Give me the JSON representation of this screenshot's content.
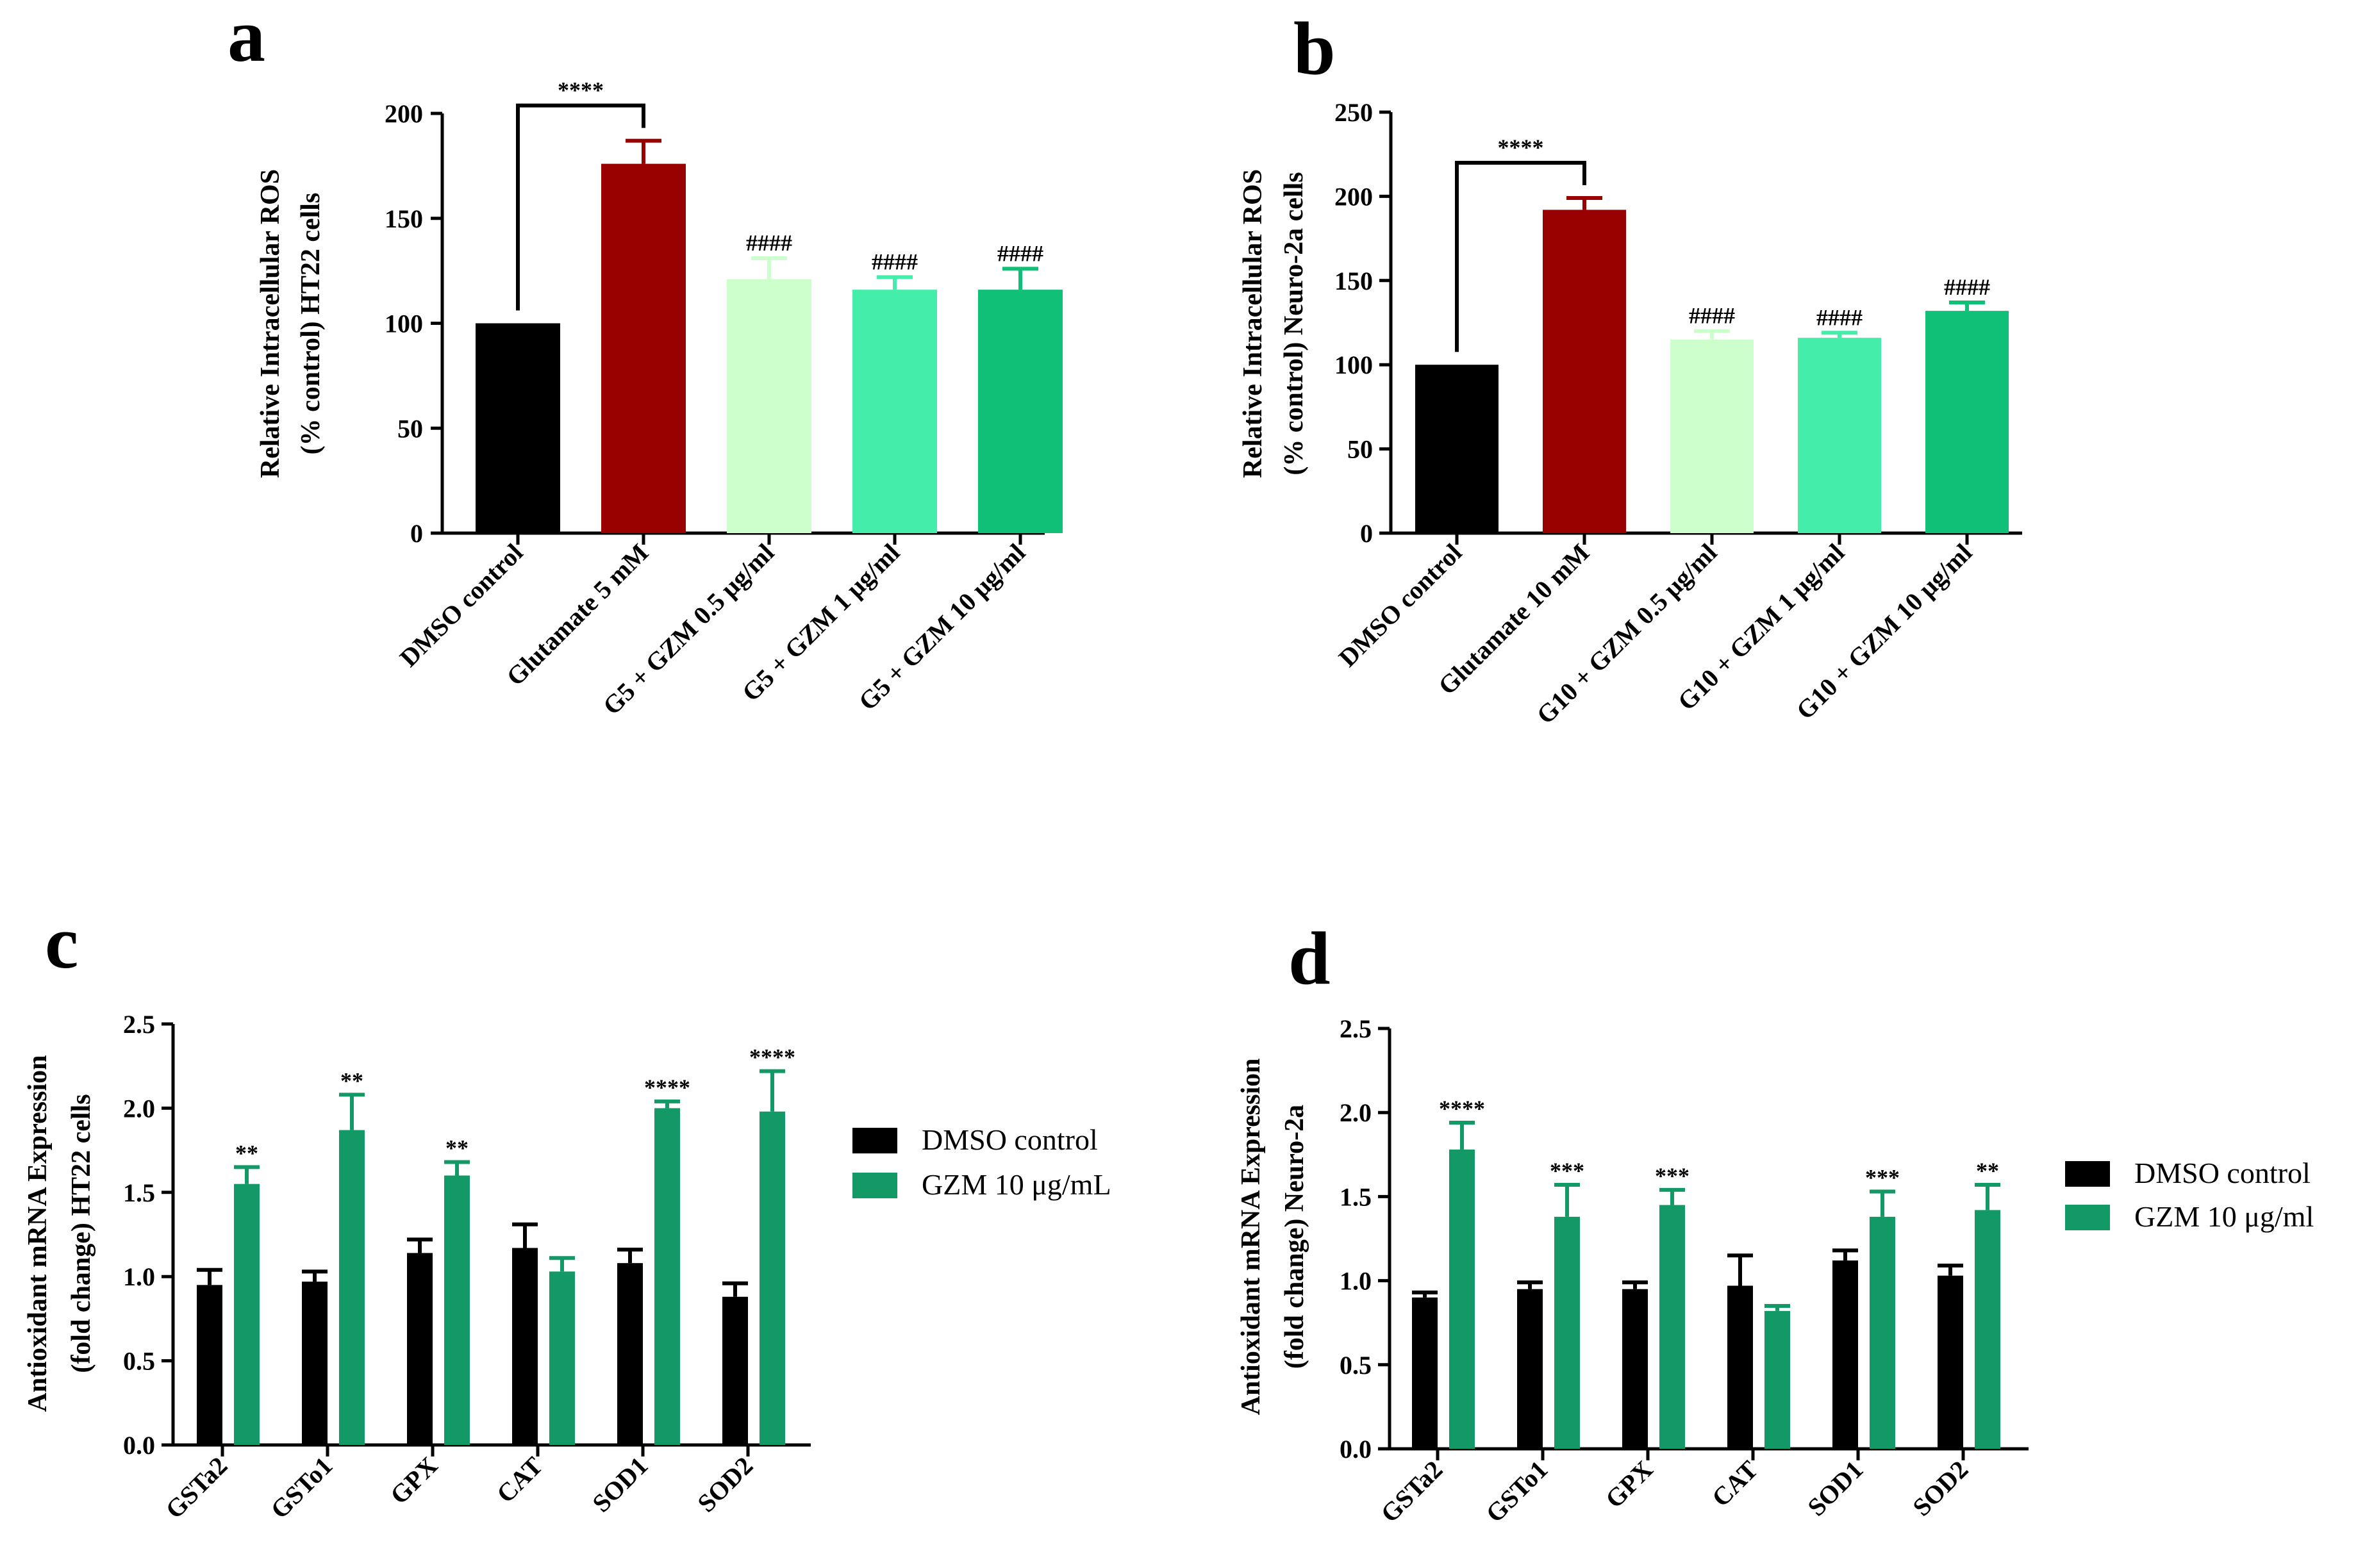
{
  "colors": {
    "black": "#000000",
    "darkred": "#990000",
    "palegreen": "#ccffcc",
    "aquamarine": "#44eeaa",
    "green": "#11c077",
    "seagreen": "#129966"
  },
  "chart_data": [
    {
      "panel": "a",
      "type": "bar",
      "ylabel": [
        "Relative Intracellular ROS",
        "(% control) HT22 cells"
      ],
      "ylim": [
        0,
        200
      ],
      "yticks": [
        0,
        50,
        100,
        150,
        200
      ],
      "categories": [
        "DMSO control",
        "Glutamate 5 mM",
        "G5 + GZM 0.5 μg/ml",
        "G5 + GZM 1 μg/ml",
        "G5 + GZM 10 μg/ml"
      ],
      "values": [
        100,
        176,
        121,
        116,
        116
      ],
      "errors": [
        0,
        11,
        10,
        6,
        10
      ],
      "bar_colors": [
        "#000000",
        "#990000",
        "#ccffcc",
        "#44eeaa",
        "#11c077"
      ],
      "annotations": [
        "",
        "",
        "####",
        "####",
        "####"
      ],
      "bracket": {
        "from": 0,
        "to": 1,
        "label": "****"
      }
    },
    {
      "panel": "b",
      "type": "bar",
      "ylabel": [
        "Relative Intracellular ROS",
        "(% control) Neuro-2a cells"
      ],
      "ylim": [
        0,
        250
      ],
      "yticks": [
        0,
        50,
        100,
        150,
        200,
        250
      ],
      "categories": [
        "DMSO control",
        "Glutamate 10 mM",
        "G10 + GZM 0.5 μg/ml",
        "G10 + GZM 1 μg/ml",
        "G10 + GZM 10 μg/ml"
      ],
      "values": [
        100,
        192,
        115,
        116,
        132
      ],
      "errors": [
        0,
        7,
        5,
        3,
        5
      ],
      "bar_colors": [
        "#000000",
        "#990000",
        "#ccffcc",
        "#44eeaa",
        "#11c077"
      ],
      "annotations": [
        "",
        "",
        "####",
        "####",
        "####"
      ],
      "bracket": {
        "from": 0,
        "to": 1,
        "label": "****"
      }
    },
    {
      "panel": "c",
      "type": "bar",
      "ylabel": [
        "Antioxidant mRNA Expression",
        "(fold change) HT22 cells"
      ],
      "ylim": [
        0,
        2.5
      ],
      "yticks": [
        "0.0",
        "0.5",
        "1.0",
        "1.5",
        "2.0",
        "2.5"
      ],
      "categories": [
        "GSTa2",
        "GSTo1",
        "GPX",
        "CAT",
        "SOD1",
        "SOD2"
      ],
      "series": [
        {
          "name": "DMSO control",
          "color": "#000000",
          "values": [
            0.95,
            0.97,
            1.14,
            1.17,
            1.08,
            0.88
          ],
          "errors": [
            0.09,
            0.06,
            0.08,
            0.14,
            0.08,
            0.08
          ]
        },
        {
          "name": "GZM 10 μg/mL",
          "color": "#129966",
          "values": [
            1.55,
            1.87,
            1.6,
            1.03,
            2.0,
            1.98
          ],
          "errors": [
            0.1,
            0.21,
            0.08,
            0.08,
            0.04,
            0.24
          ]
        }
      ],
      "annotations": [
        "**",
        "**",
        "**",
        "",
        "****",
        "****"
      ],
      "legend_labels": [
        "DMSO control",
        "GZM 10 μg/mL"
      ]
    },
    {
      "panel": "d",
      "type": "bar",
      "ylabel": [
        "Antioxidant mRNA Expression",
        "(fold change) Neuro-2a"
      ],
      "ylim": [
        0,
        2.5
      ],
      "yticks": [
        "0.0",
        "0.5",
        "1.0",
        "1.5",
        "2.0",
        "2.5"
      ],
      "categories": [
        "GSTa2",
        "GSTo1",
        "GPX",
        "CAT",
        "SOD1",
        "SOD2"
      ],
      "series": [
        {
          "name": "DMSO control",
          "color": "#000000",
          "values": [
            0.9,
            0.95,
            0.95,
            0.97,
            1.12,
            1.03
          ],
          "errors": [
            0.03,
            0.04,
            0.04,
            0.18,
            0.06,
            0.06
          ]
        },
        {
          "name": "GZM 10 μg/ml",
          "color": "#129966",
          "values": [
            1.78,
            1.38,
            1.45,
            0.82,
            1.38,
            1.42
          ],
          "errors": [
            0.16,
            0.19,
            0.09,
            0.03,
            0.15,
            0.15
          ]
        }
      ],
      "annotations": [
        "****",
        "***",
        "***",
        "",
        "***",
        "**"
      ],
      "legend_labels": [
        "DMSO control",
        "GZM 10 μg/ml"
      ]
    }
  ]
}
